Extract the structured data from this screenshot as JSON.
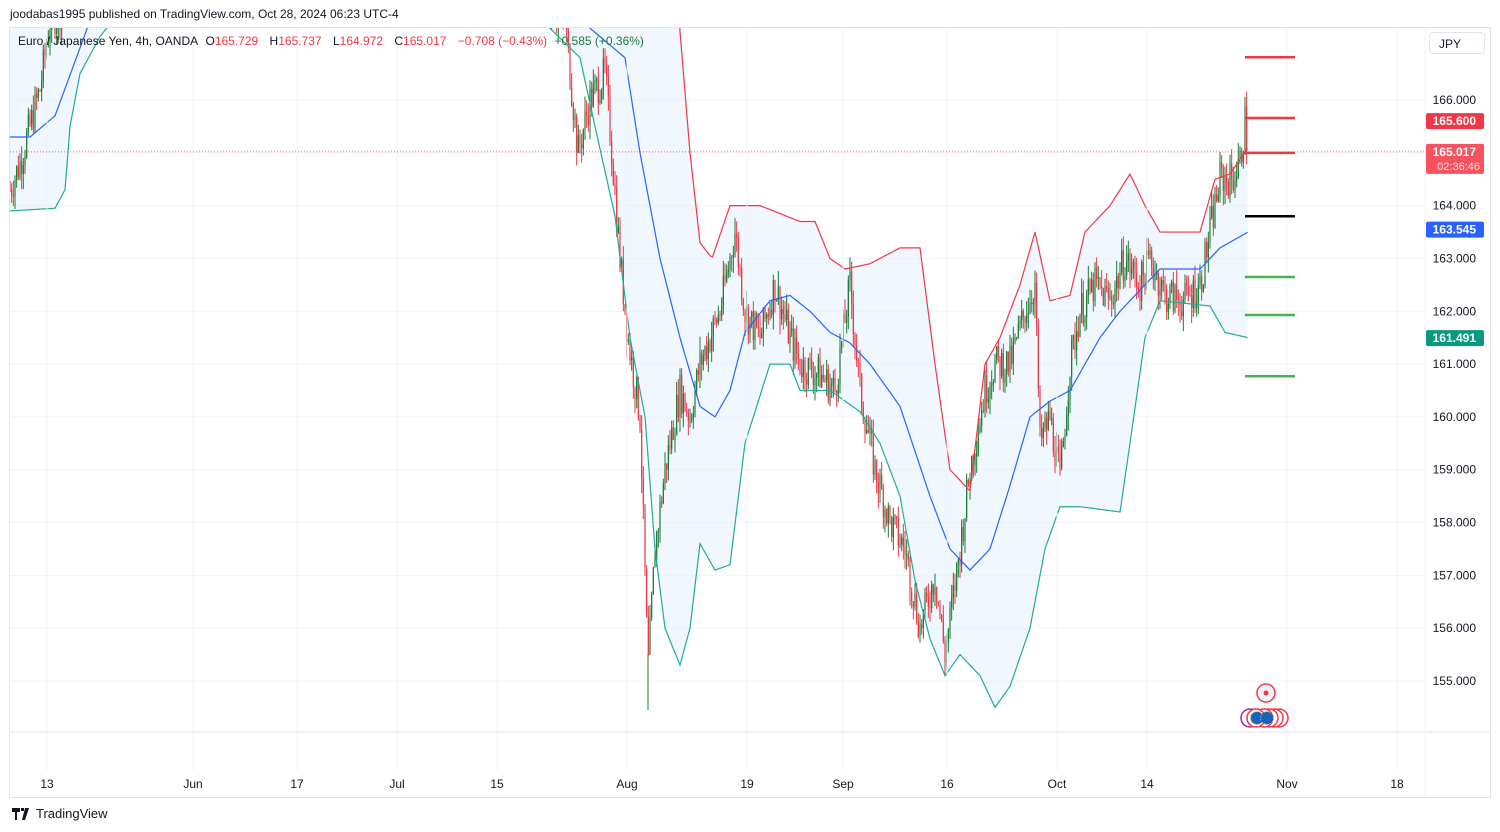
{
  "byline": "joodabas1995 published on TradingView.com, Oct 28, 2024 06:23 UTC-4",
  "legend": {
    "symbol": "Euro / Japanese Yen, 4h, OANDA",
    "open_label": "O",
    "open": "165.729",
    "high_label": "H",
    "high": "165.737",
    "low_label": "L",
    "low": "164.972",
    "close_label": "C",
    "close": "165.017",
    "change": "−0.708 (−0.43%)",
    "indicator_value": "+0.585 (+0.36%)"
  },
  "currency_button": "JPY",
  "footer": {
    "logo_text": "TradingView"
  },
  "colors": {
    "up": "#1e7b34",
    "down": "#e53945",
    "upper_band": "#f23645",
    "middle_band": "#2962ff",
    "lower_band": "#22ab94",
    "band_fill": "#e3f0fd"
  },
  "chart_data": {
    "type": "candlestick",
    "title": "Euro / Japanese Yen, 4h, OANDA",
    "ylim": [
      154.3,
      167.3
    ],
    "y_ticks": [
      "166.000",
      "164.000",
      "163.000",
      "162.000",
      "161.000",
      "160.000",
      "159.000",
      "158.000",
      "157.000",
      "156.000",
      "155.000"
    ],
    "y_tick_values": [
      166,
      164,
      163,
      162,
      161,
      160,
      159,
      158,
      157,
      156,
      155
    ],
    "x_ticks": [
      {
        "label": "13",
        "t": 4.7
      },
      {
        "label": "Jun",
        "t": 19.3
      },
      {
        "label": "17",
        "t": 29.7
      },
      {
        "label": "Jul",
        "t": 39.7
      },
      {
        "label": "15",
        "t": 49.7
      },
      {
        "label": "Aug",
        "t": 62.7
      },
      {
        "label": "19",
        "t": 74.7
      },
      {
        "label": "Sep",
        "t": 84.3
      },
      {
        "label": "16",
        "t": 94.7
      },
      {
        "label": "Oct",
        "t": 105.7
      },
      {
        "label": "14",
        "t": 114.7
      },
      {
        "label": "Nov",
        "t": 128.7
      },
      {
        "label": "18",
        "t": 139.7
      }
    ],
    "price_path": [
      [
        1.0,
        164.3
      ],
      [
        2.0,
        164.8
      ],
      [
        3.0,
        165.5
      ],
      [
        4.0,
        166.2
      ],
      [
        5.0,
        167.5
      ],
      [
        30,
        172
      ],
      [
        56.5,
        167.5
      ],
      [
        57.8,
        165
      ],
      [
        59,
        166
      ],
      [
        60.5,
        166.5
      ],
      [
        61.2,
        165
      ],
      [
        62,
        163
      ],
      [
        62.8,
        161.5
      ],
      [
        64,
        160
      ],
      [
        64.8,
        155.2
      ],
      [
        65.5,
        157.5
      ],
      [
        66.5,
        159
      ],
      [
        68,
        160.5
      ],
      [
        69,
        160
      ],
      [
        70,
        161
      ],
      [
        72,
        162
      ],
      [
        73.5,
        163.5
      ],
      [
        74.5,
        162
      ],
      [
        76,
        161.5
      ],
      [
        77.5,
        162.5
      ],
      [
        79,
        161.5
      ],
      [
        80,
        161
      ],
      [
        82,
        160.8
      ],
      [
        83.5,
        160.5
      ],
      [
        85,
        162.5
      ],
      [
        86,
        160.5
      ],
      [
        87.5,
        159
      ],
      [
        89,
        158
      ],
      [
        90.5,
        157.5
      ],
      [
        92,
        156
      ],
      [
        93.5,
        157
      ],
      [
        94.5,
        155.5
      ],
      [
        96,
        157.5
      ],
      [
        97,
        159
      ],
      [
        98.5,
        160.5
      ],
      [
        99.5,
        161
      ],
      [
        101,
        161
      ],
      [
        102.5,
        162
      ],
      [
        103.5,
        162.5
      ],
      [
        104,
        159.5
      ],
      [
        105,
        160
      ],
      [
        106,
        158.8
      ],
      [
        107,
        161
      ],
      [
        108,
        162
      ],
      [
        109.5,
        162.5
      ],
      [
        111,
        162.2
      ],
      [
        112.5,
        163
      ],
      [
        114,
        162.5
      ],
      [
        115,
        163
      ],
      [
        116.5,
        162.3
      ],
      [
        118.5,
        162.2
      ],
      [
        120,
        162.5
      ],
      [
        121,
        163.5
      ],
      [
        122,
        164.5
      ],
      [
        123.2,
        164.5
      ],
      [
        124,
        164.8
      ],
      [
        124.5,
        165.6
      ],
      [
        124.8,
        165.0
      ]
    ],
    "bollinger": {
      "upper": [
        [
          1,
          172
        ],
        [
          67,
          172
        ],
        [
          68,
          167.3
        ],
        [
          69,
          165
        ],
        [
          70,
          163.3
        ],
        [
          71.2,
          163
        ],
        [
          73,
          164
        ],
        [
          76,
          164
        ],
        [
          80,
          163.7
        ],
        [
          81.5,
          163.7
        ],
        [
          83,
          163
        ],
        [
          84.5,
          162.8
        ],
        [
          87,
          162.9
        ],
        [
          90,
          163.2
        ],
        [
          92,
          163.2
        ],
        [
          93.5,
          161
        ],
        [
          95,
          159
        ],
        [
          97,
          158.6
        ],
        [
          98.5,
          161
        ],
        [
          100,
          161.5
        ],
        [
          102,
          162.5
        ],
        [
          103.5,
          163.5
        ],
        [
          105,
          162.2
        ],
        [
          107,
          162.3
        ],
        [
          108.5,
          163.5
        ],
        [
          111,
          164
        ],
        [
          113,
          164.6
        ],
        [
          114.5,
          164
        ],
        [
          116,
          163.5
        ],
        [
          120,
          163.5
        ],
        [
          121.5,
          164.5
        ],
        [
          123,
          164.6
        ],
        [
          124.8,
          165.1
        ]
      ],
      "middle": [
        [
          1,
          165.3
        ],
        [
          3,
          165.3
        ],
        [
          5.5,
          165.7
        ],
        [
          9,
          167.5
        ],
        [
          30,
          172
        ],
        [
          62.5,
          166.8
        ],
        [
          64,
          165
        ],
        [
          66,
          163
        ],
        [
          68,
          161.5
        ],
        [
          70,
          160.2
        ],
        [
          71.5,
          160
        ],
        [
          73,
          160.5
        ],
        [
          74.5,
          161.6
        ],
        [
          77,
          162.2
        ],
        [
          79,
          162.3
        ],
        [
          81,
          162
        ],
        [
          83,
          161.6
        ],
        [
          85,
          161.4
        ],
        [
          87,
          161
        ],
        [
          90,
          160.2
        ],
        [
          93,
          158.5
        ],
        [
          95,
          157.5
        ],
        [
          97,
          157.1
        ],
        [
          99,
          157.5
        ],
        [
          101,
          158.7
        ],
        [
          103,
          160
        ],
        [
          105,
          160.3
        ],
        [
          107,
          160.5
        ],
        [
          108.5,
          161
        ],
        [
          110,
          161.5
        ],
        [
          112,
          162
        ],
        [
          114,
          162.4
        ],
        [
          116,
          162.8
        ],
        [
          120,
          162.8
        ],
        [
          122,
          163.2
        ],
        [
          124.8,
          163.5
        ]
      ],
      "lower": [
        [
          1,
          163.9
        ],
        [
          5.5,
          163.95
        ],
        [
          6.5,
          164.3
        ],
        [
          7,
          165.5
        ],
        [
          8,
          166.5
        ],
        [
          10,
          167.2
        ],
        [
          30,
          172
        ],
        [
          58,
          166.8
        ],
        [
          59.5,
          165.5
        ],
        [
          61.5,
          163.8
        ],
        [
          63,
          161.5
        ],
        [
          64.5,
          160
        ],
        [
          65.5,
          157.5
        ],
        [
          66.5,
          156
        ],
        [
          68,
          155.3
        ],
        [
          69,
          156
        ],
        [
          70,
          157.6
        ],
        [
          71.5,
          157.1
        ],
        [
          73,
          157.2
        ],
        [
          74.5,
          159.5
        ],
        [
          77,
          161
        ],
        [
          79,
          161
        ],
        [
          80,
          160.5
        ],
        [
          83,
          160.5
        ],
        [
          86,
          160.1
        ],
        [
          88,
          159.5
        ],
        [
          90,
          158.5
        ],
        [
          91.5,
          156.9
        ],
        [
          93,
          155.8
        ],
        [
          94.5,
          155.1
        ],
        [
          96,
          155.5
        ],
        [
          98,
          155.1
        ],
        [
          99.5,
          154.5
        ],
        [
          101,
          154.9
        ],
        [
          103,
          156
        ],
        [
          104.5,
          157.5
        ],
        [
          106,
          158.3
        ],
        [
          108,
          158.3
        ],
        [
          112,
          158.2
        ],
        [
          113,
          159.5
        ],
        [
          114.5,
          161.5
        ],
        [
          116,
          162.2
        ],
        [
          121,
          162.1
        ],
        [
          122.5,
          161.6
        ],
        [
          124.8,
          161.5
        ]
      ]
    },
    "level_lines": [
      {
        "price": 166.81,
        "color": "#f23645"
      },
      {
        "price": 165.66,
        "color": "#f23645"
      },
      {
        "price": 165.0,
        "color": "#f23645"
      },
      {
        "price": 163.8,
        "color": "#000000"
      },
      {
        "price": 162.65,
        "color": "#4caf50"
      },
      {
        "price": 161.93,
        "color": "#4caf50"
      },
      {
        "price": 160.77,
        "color": "#4caf50"
      }
    ],
    "level_range_t": [
      124.5,
      129.5
    ],
    "last_price": 165.017,
    "price_labels": [
      {
        "text": "165.600",
        "price": 165.6,
        "color": "#f23645"
      },
      {
        "text": "165.017",
        "sub": "02:36:46",
        "price": 165.017,
        "color": "#f7525f"
      },
      {
        "text": "163.545",
        "price": 163.545,
        "color": "#2962ff"
      },
      {
        "text": "161.491",
        "price": 161.491,
        "color": "#089981"
      }
    ],
    "low_marker": 154.45
  }
}
